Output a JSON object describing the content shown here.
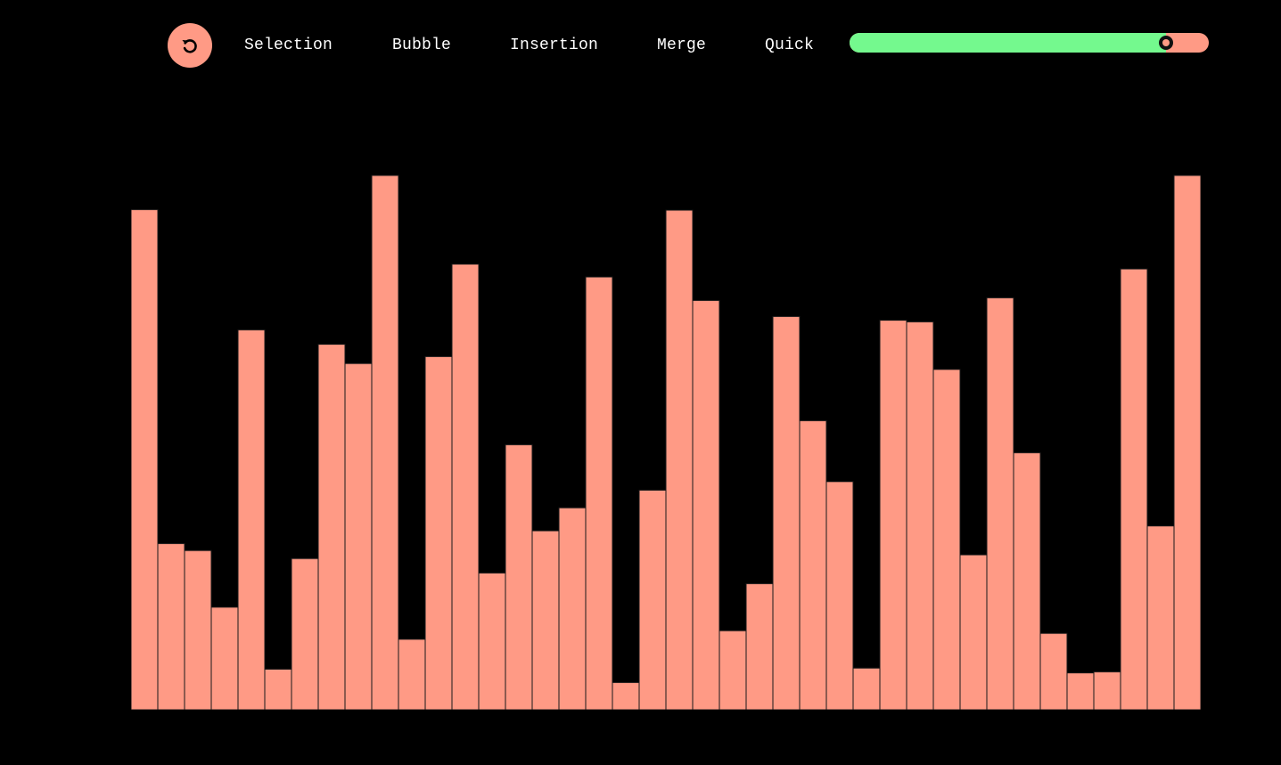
{
  "toolbar": {
    "reset_icon": "reset-icon",
    "algorithms": [
      {
        "label": "Selection"
      },
      {
        "label": "Bubble"
      },
      {
        "label": "Insertion"
      },
      {
        "label": "Merge"
      },
      {
        "label": "Quick"
      }
    ],
    "speed_slider": {
      "value": 0.88,
      "fill_color": "#74f98e",
      "track_color": "#ff9a85"
    }
  },
  "colors": {
    "background": "#000000",
    "bar": "#ff9a85",
    "bar_border": "#1a1a1a"
  },
  "chart_data": {
    "type": "bar",
    "title": "",
    "xlabel": "",
    "ylabel": "",
    "ylim": [
      0,
      100
    ],
    "values": [
      93.6,
      31.1,
      29.8,
      19.2,
      71.1,
      7.6,
      28.3,
      68.4,
      64.8,
      100,
      13.2,
      66.1,
      83.4,
      25.6,
      49.6,
      33.5,
      37.8,
      81.0,
      5.1,
      41.1,
      93.5,
      76.6,
      14.8,
      23.6,
      73.6,
      54.1,
      42.7,
      7.8,
      72.9,
      72.6,
      63.7,
      29.0,
      77.1,
      48.1,
      14.3,
      6.9,
      7.1,
      82.5,
      34.4,
      100
    ]
  }
}
